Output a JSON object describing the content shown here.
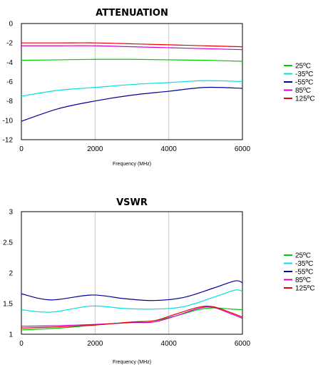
{
  "chart_data": [
    {
      "type": "line",
      "title": "ATTENUATION",
      "xlabel": "Frequency (MHz)",
      "ylabel": "",
      "xlim": [
        0,
        6000
      ],
      "ylim": [
        -12,
        0
      ],
      "xticks": [
        0,
        2000,
        4000,
        6000
      ],
      "yticks": [
        0,
        -2,
        -4,
        -6,
        -8,
        -10,
        -12
      ],
      "grid": "vertical",
      "legend_position": "right",
      "series": [
        {
          "name": "25ºC",
          "color": "#00cc00",
          "x": [
            0,
            1000,
            2000,
            3000,
            4000,
            5000,
            6000
          ],
          "y": [
            -3.8,
            -3.75,
            -3.7,
            -3.7,
            -3.75,
            -3.8,
            -3.9
          ]
        },
        {
          "name": "-35ºC",
          "color": "#00e0e0",
          "x": [
            0,
            1000,
            2000,
            3000,
            4000,
            5000,
            6000
          ],
          "y": [
            -7.5,
            -6.9,
            -6.6,
            -6.3,
            -6.1,
            -5.9,
            -6.0
          ]
        },
        {
          "name": "-55ºC",
          "color": "#000099",
          "x": [
            0,
            1000,
            2000,
            3000,
            4000,
            5000,
            6000
          ],
          "y": [
            -10.1,
            -8.8,
            -8.0,
            -7.4,
            -7.0,
            -6.6,
            -6.7
          ]
        },
        {
          "name": "85ºC",
          "color": "#cc00cc",
          "x": [
            0,
            1000,
            2000,
            3000,
            4000,
            5000,
            6000
          ],
          "y": [
            -2.3,
            -2.3,
            -2.3,
            -2.4,
            -2.5,
            -2.6,
            -2.7
          ]
        },
        {
          "name": "125ºC",
          "color": "#ee0000",
          "x": [
            0,
            1000,
            2000,
            3000,
            4000,
            5000,
            6000
          ],
          "y": [
            -2.0,
            -2.0,
            -2.0,
            -2.1,
            -2.2,
            -2.3,
            -2.4
          ]
        }
      ]
    },
    {
      "type": "line",
      "title": "VSWR",
      "xlabel": "Frequency (MHz)",
      "ylabel": "",
      "xlim": [
        0,
        6000
      ],
      "ylim": [
        1,
        3
      ],
      "xticks": [
        0,
        2000,
        4000,
        6000
      ],
      "yticks": [
        1,
        1.5,
        2,
        2.5,
        3
      ],
      "grid": "vertical",
      "legend_position": "right",
      "series": [
        {
          "name": "25ºC",
          "color": "#00cc00",
          "x": [
            0,
            1000,
            2000,
            3000,
            3600,
            4200,
            4800,
            5200,
            5700,
            6000
          ],
          "y": [
            1.07,
            1.1,
            1.15,
            1.2,
            1.22,
            1.3,
            1.4,
            1.43,
            1.41,
            1.4
          ]
        },
        {
          "name": "-35ºC",
          "color": "#00e0e0",
          "x": [
            0,
            800,
            1900,
            2800,
            3600,
            4400,
            5200,
            5800,
            6000
          ],
          "y": [
            1.4,
            1.36,
            1.46,
            1.42,
            1.41,
            1.45,
            1.6,
            1.72,
            1.7
          ]
        },
        {
          "name": "-55ºC",
          "color": "#000099",
          "x": [
            0,
            800,
            1900,
            2800,
            3600,
            4400,
            5200,
            5800,
            6000
          ],
          "y": [
            1.66,
            1.56,
            1.64,
            1.58,
            1.55,
            1.6,
            1.75,
            1.87,
            1.84
          ]
        },
        {
          "name": "85ºC",
          "color": "#cc00cc",
          "x": [
            0,
            1000,
            2000,
            3000,
            3600,
            4200,
            4800,
            5200,
            5700,
            6000
          ],
          "y": [
            1.13,
            1.14,
            1.16,
            1.19,
            1.2,
            1.3,
            1.42,
            1.44,
            1.33,
            1.26
          ]
        },
        {
          "name": "125ºC",
          "color": "#ee0000",
          "x": [
            0,
            1000,
            2000,
            3000,
            3600,
            4200,
            4800,
            5200,
            5700,
            6000
          ],
          "y": [
            1.1,
            1.12,
            1.15,
            1.2,
            1.22,
            1.33,
            1.44,
            1.45,
            1.35,
            1.28
          ]
        }
      ]
    }
  ]
}
